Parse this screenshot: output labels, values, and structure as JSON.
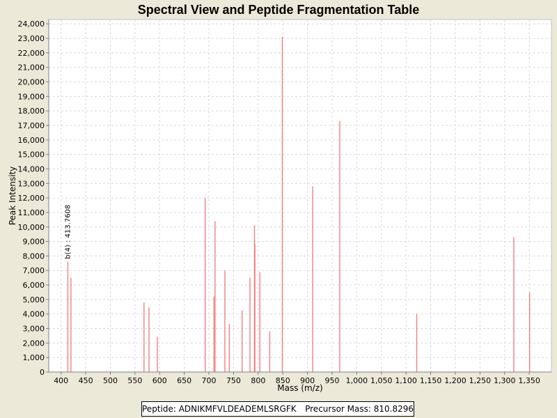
{
  "chart_data": {
    "type": "bar",
    "title": "Spectral View and Peptide Fragmentation Table",
    "xlabel": "Mass (m/z)",
    "ylabel": "Peak Intensity",
    "xlim": [
      375,
      1395
    ],
    "ylim": [
      0,
      24300
    ],
    "xticks": [
      400,
      450,
      500,
      550,
      600,
      650,
      700,
      750,
      800,
      850,
      900,
      950,
      1000,
      1050,
      1100,
      1150,
      1200,
      1250,
      1300,
      1350
    ],
    "xtick_labels": [
      "400",
      "450",
      "500",
      "550",
      "600",
      "650",
      "700",
      "750",
      "800",
      "850",
      "900",
      "950",
      "1,000",
      "1,050",
      "1,100",
      "1,150",
      "1,200",
      "1,250",
      "1,300",
      "1,350"
    ],
    "yticks": [
      0,
      1000,
      2000,
      3000,
      4000,
      5000,
      6000,
      7000,
      8000,
      9000,
      10000,
      11000,
      12000,
      13000,
      14000,
      15000,
      16000,
      17000,
      18000,
      19000,
      20000,
      21000,
      22000,
      23000,
      24000
    ],
    "ytick_labels": [
      "0",
      "1,000",
      "2,000",
      "3,000",
      "4,000",
      "5,000",
      "6,000",
      "7,000",
      "8,000",
      "9,000",
      "10,000",
      "11,000",
      "12,000",
      "13,000",
      "14,000",
      "15,000",
      "16,000",
      "17,000",
      "18,000",
      "19,000",
      "20,000",
      "21,000",
      "22,000",
      "23,000",
      "24,000"
    ],
    "grid": true,
    "bar_color": "#F08080",
    "peaks": [
      {
        "mz": 413.76,
        "intensity": 7600
      },
      {
        "mz": 420.0,
        "intensity": 6500
      },
      {
        "mz": 568.3,
        "intensity": 4800
      },
      {
        "mz": 578.5,
        "intensity": 4450
      },
      {
        "mz": 595.3,
        "intensity": 2400
      },
      {
        "mz": 692.5,
        "intensity": 12000
      },
      {
        "mz": 710.4,
        "intensity": 5200
      },
      {
        "mz": 712.4,
        "intensity": 10400
      },
      {
        "mz": 732.4,
        "intensity": 7000
      },
      {
        "mz": 741.4,
        "intensity": 3300
      },
      {
        "mz": 767.4,
        "intensity": 4250
      },
      {
        "mz": 783.4,
        "intensity": 6500
      },
      {
        "mz": 792.4,
        "intensity": 10100
      },
      {
        "mz": 793.4,
        "intensity": 8800
      },
      {
        "mz": 803.4,
        "intensity": 6900
      },
      {
        "mz": 823.4,
        "intensity": 2800
      },
      {
        "mz": 848.9,
        "intensity": 23100
      },
      {
        "mz": 910.5,
        "intensity": 12800
      },
      {
        "mz": 965.5,
        "intensity": 17300
      },
      {
        "mz": 1121.6,
        "intensity": 4000
      },
      {
        "mz": 1318.7,
        "intensity": 9300
      },
      {
        "mz": 1350.7,
        "intensity": 5500
      }
    ],
    "annotations": [
      {
        "text": "b(4) : 413.7608",
        "mz": 413.76,
        "intensity": 7600
      }
    ]
  },
  "footer": {
    "peptide": "Peptide: ADNIKMFVLDEADEMLSRGFK",
    "precursor": "Precursor Mass: 810.8296"
  }
}
